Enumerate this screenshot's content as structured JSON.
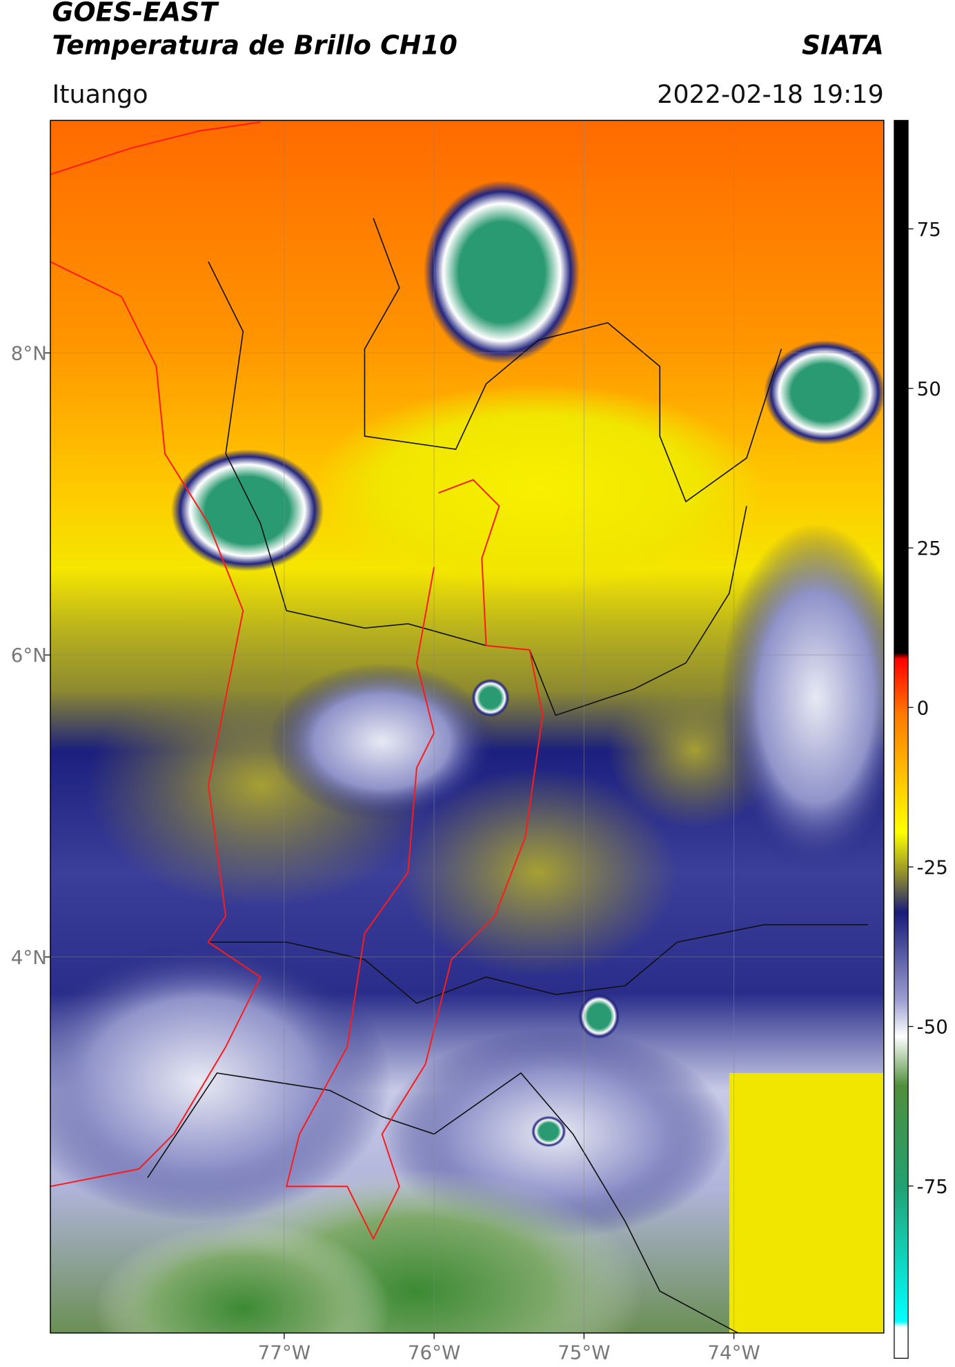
{
  "title": "GOES-EAST",
  "subtitle": "Temperatura de Brillo CH10",
  "brand": "SIATA",
  "region": "Ituango",
  "datetime": "2022-02-18 19:19",
  "map": {
    "xlim": [
      -78.56,
      -73.0
    ],
    "ylim": [
      1.51,
      9.54
    ],
    "xticks": [
      {
        "value": -77,
        "label": "77°W"
      },
      {
        "value": -76,
        "label": "76°W"
      },
      {
        "value": -75,
        "label": "75°W"
      },
      {
        "value": -74,
        "label": "74°W"
      }
    ],
    "yticks": [
      {
        "value": 8,
        "label": "8°N"
      },
      {
        "value": 6,
        "label": "6°N"
      },
      {
        "value": 4,
        "label": "4°N"
      }
    ],
    "grid": true
  },
  "colorbar": {
    "ylim": [
      -102,
      92
    ],
    "yticks": [
      75,
      50,
      25,
      0,
      -25,
      -50,
      -75
    ]
  }
}
